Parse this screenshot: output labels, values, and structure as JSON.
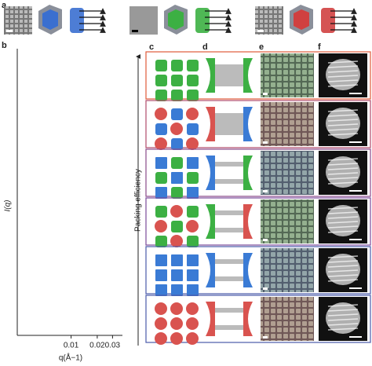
{
  "panel_labels": {
    "a": "a",
    "b": "b",
    "c": "c",
    "d": "d",
    "e": "e",
    "f": "f"
  },
  "plot": {
    "y_label": "I(q)",
    "x_label": "q(Å−1)",
    "x_log": true,
    "xlim": [
      0.0024,
      0.039
    ],
    "xticks": [
      0.01,
      0.02,
      0.03
    ]
  },
  "arrow_label": "Packing efficiency"
}
